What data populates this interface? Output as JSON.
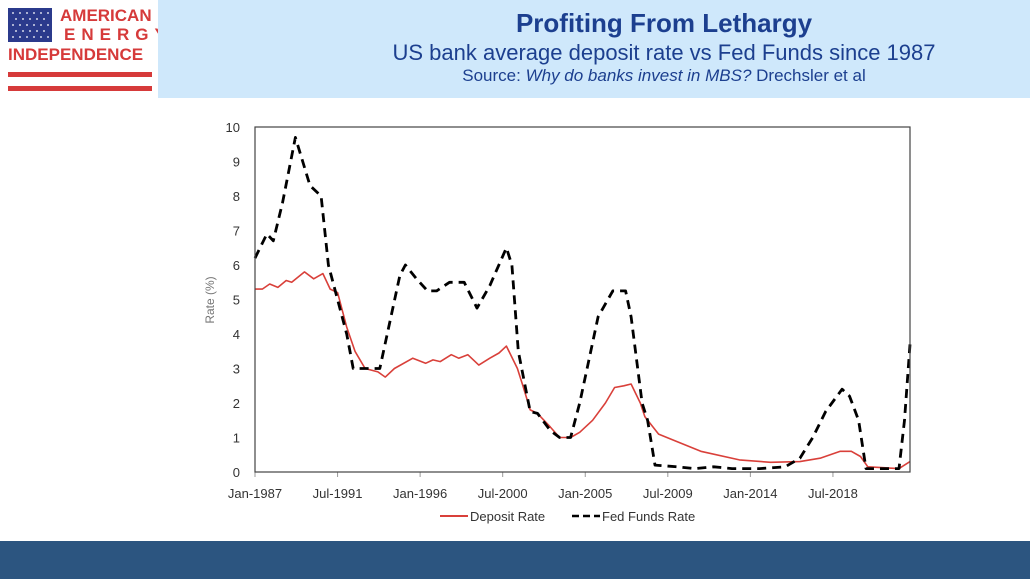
{
  "logo": {
    "line1": "AMERICAN",
    "line2": "ENERGY",
    "line3": "INDEPENDENCE"
  },
  "header": {
    "title": "Profiting From Lethargy",
    "subtitle": "US bank average deposit rate vs Fed Funds since 1987",
    "source_prefix": "Source: ",
    "source_title": "Why do banks invest in MBS?",
    "source_authors": " Drechsler et al"
  },
  "colors": {
    "header_bg": "#cfe8fb",
    "footer_bg": "#2c5580",
    "deposit": "#d9403a",
    "fed": "#000000"
  },
  "chart_data": {
    "type": "line",
    "xlabel": "",
    "ylabel": "Rate (%)",
    "xlim": [
      1987,
      2022.7
    ],
    "ylim": [
      0,
      10
    ],
    "yticks": [
      "0",
      "1",
      "2",
      "3",
      "4",
      "5",
      "6",
      "7",
      "8",
      "9",
      "10"
    ],
    "xticks": [
      {
        "x": 1987,
        "label": "Jan-1987"
      },
      {
        "x": 1991.5,
        "label": "Jul-1991"
      },
      {
        "x": 1996,
        "label": "Jan-1996"
      },
      {
        "x": 2000.5,
        "label": "Jul-2000"
      },
      {
        "x": 2005,
        "label": "Jan-2005"
      },
      {
        "x": 2009.5,
        "label": "Jul-2009"
      },
      {
        "x": 2014,
        "label": "Jan-2014"
      },
      {
        "x": 2018.5,
        "label": "Jul-2018"
      }
    ],
    "legend": "bottom",
    "series": [
      {
        "name": "Deposit Rate",
        "style": "solid",
        "points": [
          [
            1987,
            5.3
          ],
          [
            1987.4,
            5.3
          ],
          [
            1987.8,
            5.45
          ],
          [
            1988.25,
            5.35
          ],
          [
            1988.7,
            5.55
          ],
          [
            1989,
            5.5
          ],
          [
            1989.7,
            5.8
          ],
          [
            1990.2,
            5.6
          ],
          [
            1990.7,
            5.75
          ],
          [
            1991.1,
            5.3
          ],
          [
            1991.5,
            5.2
          ],
          [
            1992,
            4.2
          ],
          [
            1992.45,
            3.5
          ],
          [
            1993,
            3.0
          ],
          [
            1993.7,
            2.9
          ],
          [
            1994.1,
            2.75
          ],
          [
            1994.6,
            3.0
          ],
          [
            1995.6,
            3.3
          ],
          [
            1996.3,
            3.15
          ],
          [
            1996.7,
            3.25
          ],
          [
            1997.1,
            3.2
          ],
          [
            1997.7,
            3.4
          ],
          [
            1998.1,
            3.3
          ],
          [
            1998.6,
            3.4
          ],
          [
            1999.2,
            3.1
          ],
          [
            1999.8,
            3.3
          ],
          [
            2000.3,
            3.45
          ],
          [
            2000.7,
            3.65
          ],
          [
            2001.3,
            3.0
          ],
          [
            2001.6,
            2.5
          ],
          [
            2002,
            1.8
          ],
          [
            2002.4,
            1.7
          ],
          [
            2003.1,
            1.3
          ],
          [
            2003.6,
            1.0
          ],
          [
            2004.2,
            1.0
          ],
          [
            2004.7,
            1.15
          ],
          [
            2005.4,
            1.5
          ],
          [
            2006.1,
            2.0
          ],
          [
            2006.6,
            2.45
          ],
          [
            2007.1,
            2.5
          ],
          [
            2007.5,
            2.55
          ],
          [
            2008,
            2.0
          ],
          [
            2008.25,
            1.6
          ],
          [
            2009,
            1.1
          ],
          [
            2009.9,
            0.9
          ],
          [
            2011.3,
            0.6
          ],
          [
            2013.4,
            0.35
          ],
          [
            2015.1,
            0.28
          ],
          [
            2016.7,
            0.3
          ],
          [
            2017.8,
            0.4
          ],
          [
            2018.9,
            0.6
          ],
          [
            2019.5,
            0.6
          ],
          [
            2020,
            0.45
          ],
          [
            2020.4,
            0.15
          ],
          [
            2022.1,
            0.1
          ],
          [
            2022.7,
            0.3
          ]
        ]
      },
      {
        "name": "Fed Funds Rate",
        "style": "dashed",
        "points": [
          [
            1987,
            6.2
          ],
          [
            1987.65,
            6.9
          ],
          [
            1988,
            6.7
          ],
          [
            1988.5,
            7.8
          ],
          [
            1989.2,
            9.7
          ],
          [
            1990,
            8.3
          ],
          [
            1990.6,
            8.0
          ],
          [
            1991,
            6.0
          ],
          [
            1992,
            4.0
          ],
          [
            1992.35,
            3.0
          ],
          [
            1993.8,
            3.0
          ],
          [
            1994.9,
            5.7
          ],
          [
            1995.2,
            6.0
          ],
          [
            1995.8,
            5.6
          ],
          [
            1996.4,
            5.25
          ],
          [
            1996.9,
            5.25
          ],
          [
            1997.6,
            5.5
          ],
          [
            1998.4,
            5.5
          ],
          [
            1999.1,
            4.75
          ],
          [
            1999.8,
            5.4
          ],
          [
            2000.7,
            6.5
          ],
          [
            2001,
            6.0
          ],
          [
            2001.35,
            3.5
          ],
          [
            2002,
            1.75
          ],
          [
            2002.4,
            1.7
          ],
          [
            2003.1,
            1.2
          ],
          [
            2003.6,
            1.0
          ],
          [
            2004.2,
            1.0
          ],
          [
            2004.7,
            2.0
          ],
          [
            2005.1,
            3.0
          ],
          [
            2005.7,
            4.5
          ],
          [
            2006.5,
            5.25
          ],
          [
            2007.2,
            5.25
          ],
          [
            2007.5,
            4.5
          ],
          [
            2008.1,
            2.0
          ],
          [
            2008.4,
            1.5
          ],
          [
            2008.8,
            0.2
          ],
          [
            2010,
            0.15
          ],
          [
            2011,
            0.1
          ],
          [
            2012,
            0.15
          ],
          [
            2013,
            0.1
          ],
          [
            2014.5,
            0.1
          ],
          [
            2015.9,
            0.15
          ],
          [
            2016.7,
            0.4
          ],
          [
            2017.4,
            1.0
          ],
          [
            2018.1,
            1.75
          ],
          [
            2019,
            2.4
          ],
          [
            2019.4,
            2.2
          ],
          [
            2019.9,
            1.5
          ],
          [
            2020.3,
            0.1
          ],
          [
            2022.1,
            0.1
          ],
          [
            2022.4,
            1.5
          ],
          [
            2022.7,
            3.7
          ]
        ]
      }
    ]
  }
}
